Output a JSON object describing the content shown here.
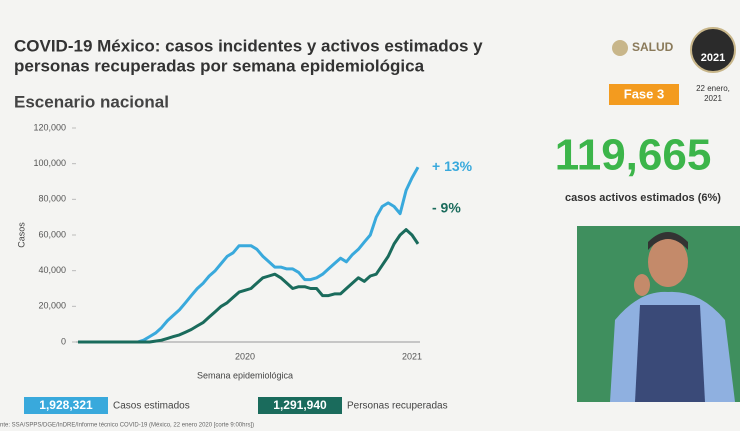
{
  "header": {
    "title_line1": "COVID-19 México: casos incidentes y activos estimados y",
    "title_line2": "personas recuperadas por semana epidemiológica",
    "subtitle": "Escenario nacional",
    "logo_text": "SALUD",
    "badge": "Fase 3",
    "logo_year": "2021",
    "date_line1": "22 enero,",
    "date_line2": "2021"
  },
  "kpi": {
    "value": "119,665",
    "label": "casos activos estimados (6%)"
  },
  "legend_totals": [
    "1,928,321",
    "1,291,940"
  ],
  "footer": "nte: SSA/SPPS/DGE/InDRE/Informe técnico COVID-19 (México, 22 enero 2020 [corte 9:00hrs])",
  "chart_data": {
    "type": "line",
    "xlabel": "Semana epidemiológica",
    "ylabel": "Casos",
    "categories": [
      null,
      null,
      null,
      null,
      null,
      null,
      null,
      null,
      null,
      null,
      null,
      null,
      null,
      null,
      null,
      null,
      null,
      null,
      null,
      null,
      null,
      null,
      null,
      null,
      null,
      null,
      null,
      null,
      "2020",
      null,
      null,
      null,
      null,
      null,
      null,
      null,
      null,
      null,
      null,
      null,
      null,
      null,
      null,
      null,
      null,
      null,
      null,
      null,
      null,
      null,
      null,
      null,
      null,
      null,
      null,
      null,
      "2021",
      null
    ],
    "series": [
      {
        "name": "Casos estimados",
        "color": "#39a9dc",
        "annotation": "+ 13%",
        "values": [
          0,
          0,
          0,
          0,
          0,
          0,
          0,
          0,
          0,
          0,
          0,
          1000,
          3000,
          5000,
          8000,
          12000,
          15000,
          18000,
          22000,
          26000,
          30000,
          33000,
          37000,
          40000,
          44000,
          48000,
          50000,
          54000,
          54000,
          54000,
          52000,
          48000,
          45000,
          42000,
          42000,
          41000,
          41000,
          39000,
          35000,
          35000,
          36000,
          38000,
          41000,
          44000,
          47000,
          45000,
          49000,
          52000,
          56000,
          60000,
          70000,
          76000,
          78000,
          76000,
          72000,
          85000,
          92000,
          98000
        ]
      },
      {
        "name": "Personas recuperadas",
        "color": "#1a6b5c",
        "annotation": "- 9%",
        "values": [
          0,
          0,
          0,
          0,
          0,
          0,
          0,
          0,
          0,
          0,
          0,
          0,
          0,
          500,
          1000,
          2000,
          3000,
          4000,
          5500,
          7000,
          9000,
          11000,
          14000,
          17000,
          20000,
          22000,
          25000,
          28000,
          29000,
          30000,
          33000,
          36000,
          37000,
          38000,
          36000,
          33000,
          30000,
          31000,
          31000,
          30000,
          30000,
          26000,
          26000,
          27000,
          27000,
          30000,
          33000,
          36000,
          34000,
          37000,
          38000,
          43000,
          48000,
          55000,
          60000,
          63000,
          60000,
          55000
        ]
      }
    ],
    "ylim": [
      0,
      120000
    ],
    "yticks": [
      0,
      {
        "value": 20000,
        "label": "20,000"
      },
      {
        "value": 40000,
        "label": "40,000"
      },
      {
        "value": 60000,
        "label": "60,000"
      },
      {
        "value": 80000,
        "label": "80,000"
      },
      {
        "value": 100000,
        "label": "100,000"
      },
      {
        "value": 120000,
        "label": "120,000"
      }
    ],
    "grid": false
  }
}
